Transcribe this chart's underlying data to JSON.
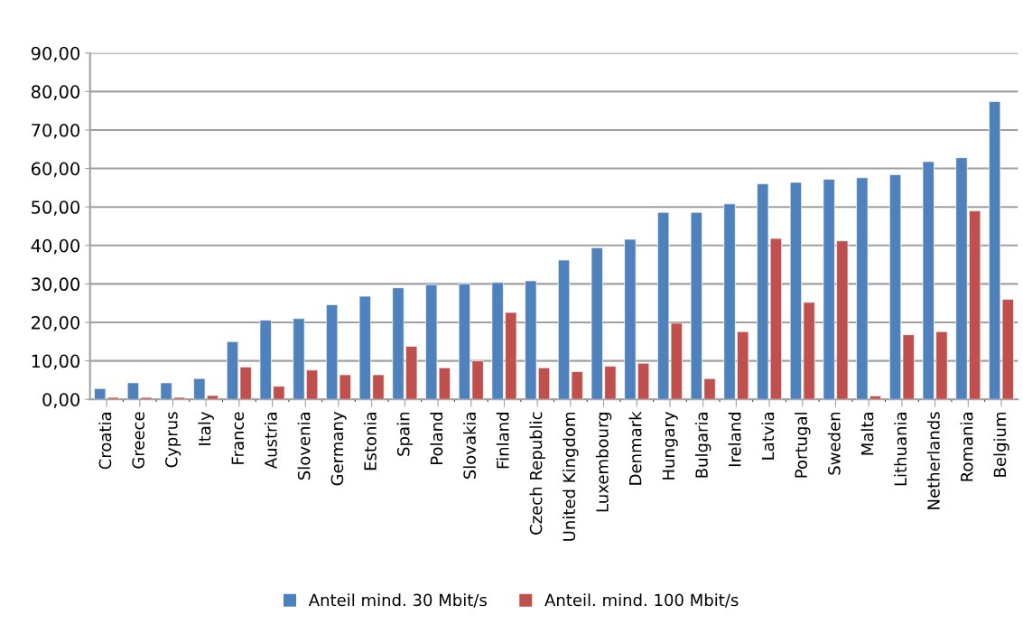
{
  "chart_data": {
    "type": "bar",
    "categories": [
      "Croatia",
      "Greece",
      "Cyprus",
      "Italy",
      "France",
      "Austria",
      "Slovenia",
      "Germany",
      "Estonia",
      "Spain",
      "Poland",
      "Slovakia",
      "Finland",
      "Czech Republic",
      "United Kingdom",
      "Luxembourg",
      "Denmark",
      "Hungary",
      "Bulgaria",
      "Ireland",
      "Latvia",
      "Portugal",
      "Sweden",
      "Malta",
      "Lithuania",
      "Netherlands",
      "Romania",
      "Belgium"
    ],
    "series": [
      {
        "name": "Anteil mind. 30 Mbit/s",
        "color": "#4f81bd",
        "values": [
          2.8,
          4.3,
          4.3,
          5.4,
          15.0,
          20.6,
          21.0,
          24.6,
          26.8,
          29.0,
          29.8,
          30.0,
          30.4,
          30.8,
          36.2,
          39.4,
          41.6,
          48.6,
          48.6,
          50.8,
          56.0,
          56.4,
          57.2,
          57.6,
          58.4,
          61.8,
          62.8,
          77.4
        ]
      },
      {
        "name": "Anteil. mind. 100 Mbit/s",
        "color": "#c0504d",
        "values": [
          0.5,
          0.5,
          0.5,
          1.0,
          8.4,
          3.4,
          7.6,
          6.4,
          6.4,
          13.8,
          8.2,
          10.0,
          22.6,
          8.2,
          7.2,
          8.6,
          9.4,
          19.8,
          5.4,
          17.6,
          41.8,
          25.2,
          41.2,
          0.9,
          16.8,
          17.6,
          49.0,
          26.0
        ]
      }
    ],
    "ylim": [
      0,
      90
    ],
    "yticks": [
      {
        "value": 0,
        "label": "0,00"
      },
      {
        "value": 10,
        "label": "10,00"
      },
      {
        "value": 20,
        "label": "20,00"
      },
      {
        "value": 30,
        "label": "30,00"
      },
      {
        "value": 40,
        "label": "40,00"
      },
      {
        "value": 50,
        "label": "50,00"
      },
      {
        "value": 60,
        "label": "60,00"
      },
      {
        "value": 70,
        "label": "70,00"
      },
      {
        "value": 80,
        "label": "80,00"
      },
      {
        "value": 90,
        "label": "90,00"
      }
    ],
    "grid": "y",
    "legend": "bottom"
  }
}
